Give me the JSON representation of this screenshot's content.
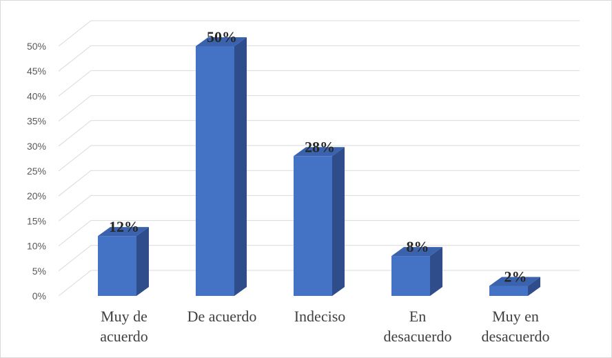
{
  "chart_data": {
    "type": "bar",
    "style": "3d-column",
    "title": "",
    "xlabel": "",
    "ylabel": "",
    "categories": [
      [
        "Muy de",
        "acuerdo"
      ],
      [
        "De acuerdo"
      ],
      [
        "Indeciso"
      ],
      [
        "En",
        "desacuerdo"
      ],
      [
        "Muy en",
        "desacuerdo"
      ]
    ],
    "values": [
      12,
      50,
      28,
      8,
      2
    ],
    "data_labels": [
      "12%",
      "50%",
      "28%",
      "8%",
      "2%"
    ],
    "y_ticks": [
      "0%",
      "5%",
      "10%",
      "15%",
      "20%",
      "25%",
      "30%",
      "35%",
      "40%",
      "45%",
      "50%"
    ],
    "ylim": [
      0,
      50
    ],
    "grid": true,
    "legend": "none",
    "colors": {
      "bar_front": "#4472c4",
      "bar_side": "#2e4d8a",
      "bar_top": "#3a62ad",
      "grid": "#d9d9d9"
    }
  }
}
